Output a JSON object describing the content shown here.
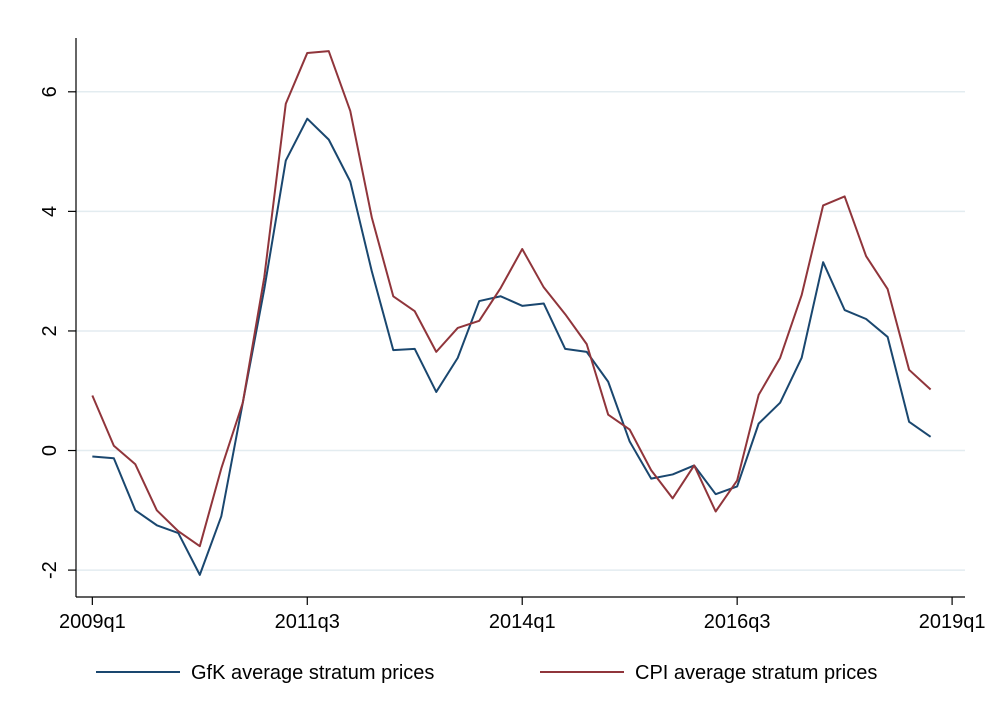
{
  "chart_data": {
    "type": "line",
    "x": [
      2009,
      2009.25,
      2009.5,
      2009.75,
      2010,
      2010.25,
      2010.5,
      2010.75,
      2011,
      2011.25,
      2011.5,
      2011.75,
      2012,
      2012.25,
      2012.5,
      2012.75,
      2013,
      2013.25,
      2013.5,
      2013.75,
      2014,
      2014.25,
      2014.5,
      2014.75,
      2015,
      2015.25,
      2015.5,
      2015.75,
      2016,
      2016.25,
      2016.5,
      2016.75,
      2017,
      2017.25,
      2017.5,
      2017.75,
      2018,
      2018.25,
      2018.5,
      2018.75
    ],
    "series": [
      {
        "name": "GfK average stratum prices",
        "color": "#1a476f",
        "values": [
          -0.1,
          -0.13,
          -1.0,
          -1.25,
          -1.38,
          -2.08,
          -1.1,
          0.8,
          2.7,
          4.85,
          5.55,
          5.2,
          4.5,
          3.0,
          1.68,
          1.7,
          0.98,
          1.55,
          2.5,
          2.58,
          2.42,
          2.46,
          1.7,
          1.65,
          1.15,
          0.15,
          -0.47,
          -0.4,
          -0.25,
          -0.73,
          -0.6,
          0.45,
          0.8,
          1.55,
          3.15,
          2.35,
          2.2,
          1.9,
          0.48,
          0.23
        ]
      },
      {
        "name": "CPI average stratum prices",
        "color": "#90353b",
        "values": [
          0.92,
          0.08,
          -0.23,
          -1.0,
          -1.35,
          -1.6,
          -0.3,
          0.8,
          2.9,
          5.8,
          6.65,
          6.68,
          5.68,
          3.9,
          2.58,
          2.33,
          1.65,
          2.05,
          2.17,
          2.72,
          3.37,
          2.73,
          2.28,
          1.78,
          0.6,
          0.35,
          -0.33,
          -0.8,
          -0.25,
          -1.02,
          -0.5,
          0.93,
          1.55,
          2.6,
          4.1,
          4.25,
          3.25,
          2.7,
          1.35,
          1.02
        ]
      }
    ],
    "xlim": [
      2008.81,
      2019.15
    ],
    "xticks": [
      {
        "value": 2009,
        "label": "2009q1"
      },
      {
        "value": 2011.5,
        "label": "2011q3"
      },
      {
        "value": 2014,
        "label": "2014q1"
      },
      {
        "value": 2016.5,
        "label": "2016q3"
      },
      {
        "value": 2019,
        "label": "2019q1"
      }
    ],
    "ylim": [
      -2.45,
      6.9
    ],
    "yticks": [
      -2,
      0,
      2,
      4,
      6
    ],
    "grid": true,
    "legend": "bottom"
  }
}
